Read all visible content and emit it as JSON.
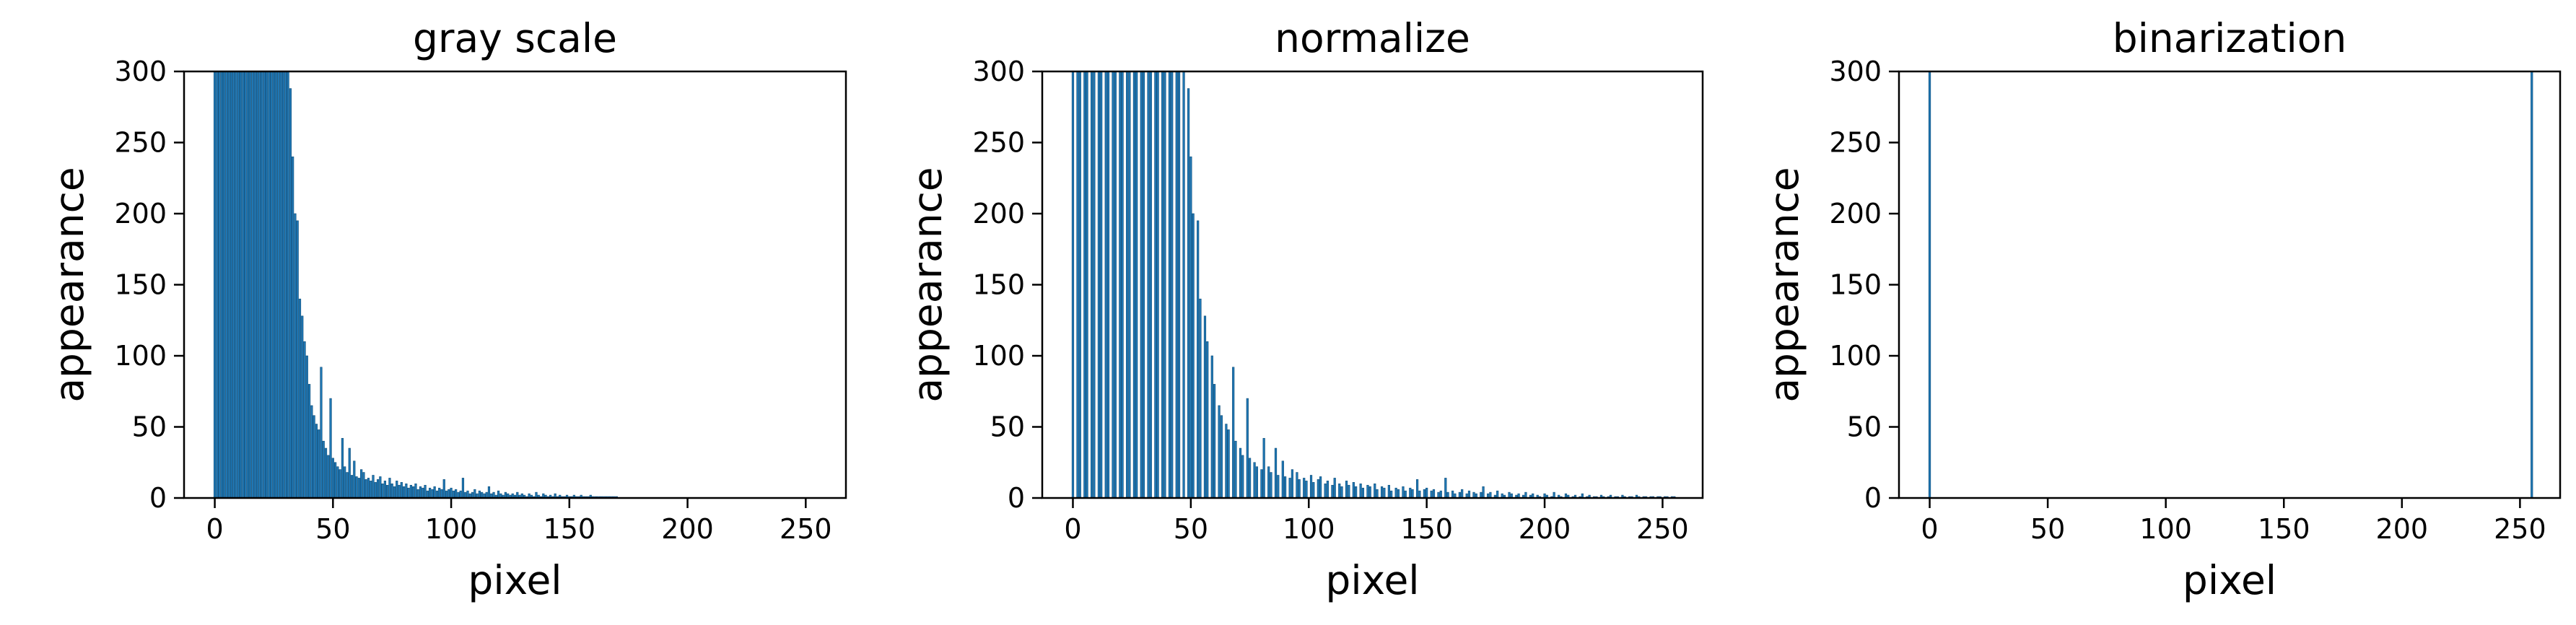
{
  "chart_data": [
    {
      "type": "bar",
      "title": "gray scale",
      "xlabel": "pixel",
      "ylabel": "appearance",
      "xlim": [
        -13,
        267
      ],
      "ylim": [
        0,
        300
      ],
      "xticks": [
        "0",
        "50",
        "100",
        "150",
        "200",
        "250"
      ],
      "yticks": [
        "0",
        "50",
        "100",
        "150",
        "200",
        "250",
        "300"
      ],
      "color": "#1f77b4",
      "x": [
        0,
        1,
        2,
        3,
        4,
        5,
        6,
        7,
        8,
        9,
        10,
        11,
        12,
        13,
        14,
        15,
        16,
        17,
        18,
        19,
        20,
        21,
        22,
        23,
        24,
        25,
        26,
        27,
        28,
        29,
        30,
        31,
        32,
        33,
        34,
        35,
        36,
        37,
        38,
        39,
        40,
        41,
        42,
        43,
        44,
        45,
        46,
        47,
        48,
        49,
        50,
        51,
        52,
        53,
        54,
        55,
        56,
        57,
        58,
        59,
        60,
        61,
        62,
        63,
        64,
        65,
        66,
        67,
        68,
        69,
        70,
        71,
        72,
        73,
        74,
        75,
        76,
        77,
        78,
        79,
        80,
        81,
        82,
        83,
        84,
        85,
        86,
        87,
        88,
        89,
        90,
        91,
        92,
        93,
        94,
        95,
        96,
        97,
        98,
        99,
        100,
        101,
        102,
        103,
        104,
        105,
        106,
        107,
        108,
        109,
        110,
        111,
        112,
        113,
        114,
        115,
        116,
        117,
        118,
        119,
        120,
        121,
        122,
        123,
        124,
        125,
        126,
        127,
        128,
        129,
        130,
        131,
        132,
        133,
        134,
        135,
        136,
        137,
        138,
        139,
        140,
        141,
        142,
        143,
        144,
        145,
        146,
        147,
        148,
        149,
        150,
        151,
        152,
        153,
        154,
        155,
        156,
        157,
        158,
        159,
        160,
        161,
        162,
        163,
        164,
        165,
        166,
        167,
        168,
        169,
        170
      ],
      "values": [
        300,
        300,
        300,
        300,
        300,
        300,
        300,
        300,
        300,
        300,
        300,
        300,
        300,
        300,
        300,
        300,
        300,
        300,
        300,
        300,
        300,
        300,
        300,
        300,
        300,
        300,
        300,
        300,
        300,
        300,
        300,
        300,
        288,
        240,
        200,
        195,
        140,
        128,
        110,
        100,
        80,
        65,
        58,
        52,
        48,
        92,
        40,
        35,
        30,
        70,
        28,
        25,
        22,
        20,
        42,
        22,
        18,
        35,
        16,
        26,
        15,
        14,
        20,
        18,
        13,
        14,
        12,
        16,
        11,
        13,
        15,
        10,
        12,
        9,
        14,
        10,
        8,
        12,
        9,
        11,
        8,
        10,
        7,
        9,
        8,
        10,
        6,
        8,
        7,
        9,
        5,
        7,
        6,
        8,
        5,
        7,
        6,
        13,
        5,
        6,
        7,
        5,
        6,
        4,
        5,
        14,
        4,
        5,
        3,
        4,
        6,
        3,
        5,
        4,
        3,
        4,
        8,
        3,
        4,
        2,
        5,
        3,
        2,
        4,
        3,
        2,
        3,
        2,
        4,
        2,
        3,
        2,
        1,
        3,
        2,
        1,
        4,
        2,
        1,
        3,
        2,
        1,
        2,
        1,
        3,
        1,
        2,
        1,
        1,
        2,
        1,
        1,
        2,
        1,
        1,
        2,
        1,
        1,
        1,
        2,
        1,
        1,
        1,
        1,
        1,
        1,
        1,
        1,
        1,
        1,
        1
      ]
    },
    {
      "type": "bar",
      "title": "normalize",
      "xlabel": "pixel",
      "ylabel": "appearance",
      "xlim": [
        -13,
        267
      ],
      "ylim": [
        0,
        300
      ],
      "xticks": [
        "0",
        "50",
        "100",
        "150",
        "200",
        "250"
      ],
      "yticks": [
        "0",
        "50",
        "100",
        "150",
        "200",
        "250",
        "300"
      ],
      "color": "#1f77b4",
      "x": [
        0,
        2,
        3,
        5,
        6,
        8,
        9,
        11,
        12,
        14,
        15,
        17,
        18,
        20,
        21,
        23,
        24,
        26,
        27,
        29,
        30,
        32,
        33,
        35,
        36,
        38,
        39,
        41,
        42,
        44,
        45,
        47,
        49,
        50,
        51,
        53,
        54,
        56,
        57,
        59,
        60,
        62,
        63,
        65,
        66,
        68,
        69,
        71,
        72,
        74,
        75,
        77,
        78,
        80,
        81,
        83,
        84,
        86,
        87,
        89,
        90,
        92,
        93,
        95,
        96,
        98,
        99,
        101,
        102,
        104,
        105,
        107,
        108,
        110,
        111,
        113,
        114,
        116,
        117,
        119,
        120,
        122,
        123,
        125,
        126,
        128,
        129,
        131,
        132,
        134,
        135,
        137,
        138,
        140,
        141,
        143,
        144,
        146,
        147,
        149,
        150,
        152,
        153,
        155,
        156,
        158,
        159,
        161,
        162,
        164,
        165,
        167,
        168,
        170,
        171,
        173,
        174,
        176,
        177,
        179,
        180,
        182,
        183,
        185,
        186,
        188,
        189,
        191,
        192,
        194,
        195,
        197,
        198,
        200,
        201,
        203,
        204,
        206,
        207,
        209,
        210,
        212,
        213,
        215,
        216,
        218,
        219,
        221,
        222,
        224,
        225,
        227,
        228,
        230,
        231,
        233,
        234,
        236,
        237,
        239,
        240,
        242,
        243,
        245,
        246,
        248,
        249,
        251,
        252,
        254,
        255
      ],
      "values": [
        300,
        300,
        300,
        300,
        300,
        300,
        300,
        300,
        300,
        300,
        300,
        300,
        300,
        300,
        300,
        300,
        300,
        300,
        300,
        300,
        300,
        300,
        300,
        300,
        300,
        300,
        300,
        300,
        300,
        300,
        300,
        300,
        288,
        240,
        200,
        195,
        140,
        128,
        110,
        100,
        80,
        65,
        58,
        52,
        48,
        92,
        40,
        35,
        30,
        70,
        28,
        25,
        22,
        20,
        42,
        22,
        18,
        35,
        16,
        26,
        15,
        14,
        20,
        18,
        13,
        14,
        12,
        16,
        11,
        13,
        15,
        10,
        12,
        9,
        14,
        10,
        8,
        12,
        9,
        11,
        8,
        10,
        7,
        9,
        8,
        10,
        6,
        8,
        7,
        9,
        5,
        7,
        6,
        8,
        5,
        7,
        6,
        13,
        5,
        6,
        7,
        5,
        6,
        4,
        5,
        14,
        4,
        5,
        3,
        4,
        6,
        3,
        5,
        4,
        3,
        4,
        8,
        3,
        4,
        2,
        5,
        3,
        2,
        4,
        3,
        2,
        3,
        2,
        4,
        2,
        3,
        2,
        1,
        3,
        2,
        1,
        4,
        2,
        1,
        3,
        2,
        1,
        2,
        1,
        3,
        1,
        2,
        1,
        1,
        2,
        1,
        1,
        2,
        1,
        1,
        2,
        1,
        1,
        1,
        2,
        1,
        1,
        1,
        1,
        1,
        1,
        1,
        1,
        1,
        1,
        1
      ]
    },
    {
      "type": "bar",
      "title": "binarization",
      "xlabel": "pixel",
      "ylabel": "appearance",
      "xlim": [
        -13,
        267
      ],
      "ylim": [
        0,
        300
      ],
      "xticks": [
        "0",
        "50",
        "100",
        "150",
        "200",
        "250"
      ],
      "yticks": [
        "0",
        "50",
        "100",
        "150",
        "200",
        "250",
        "300"
      ],
      "color": "#1f77b4",
      "x": [
        0,
        255
      ],
      "values": [
        300,
        300
      ]
    }
  ]
}
